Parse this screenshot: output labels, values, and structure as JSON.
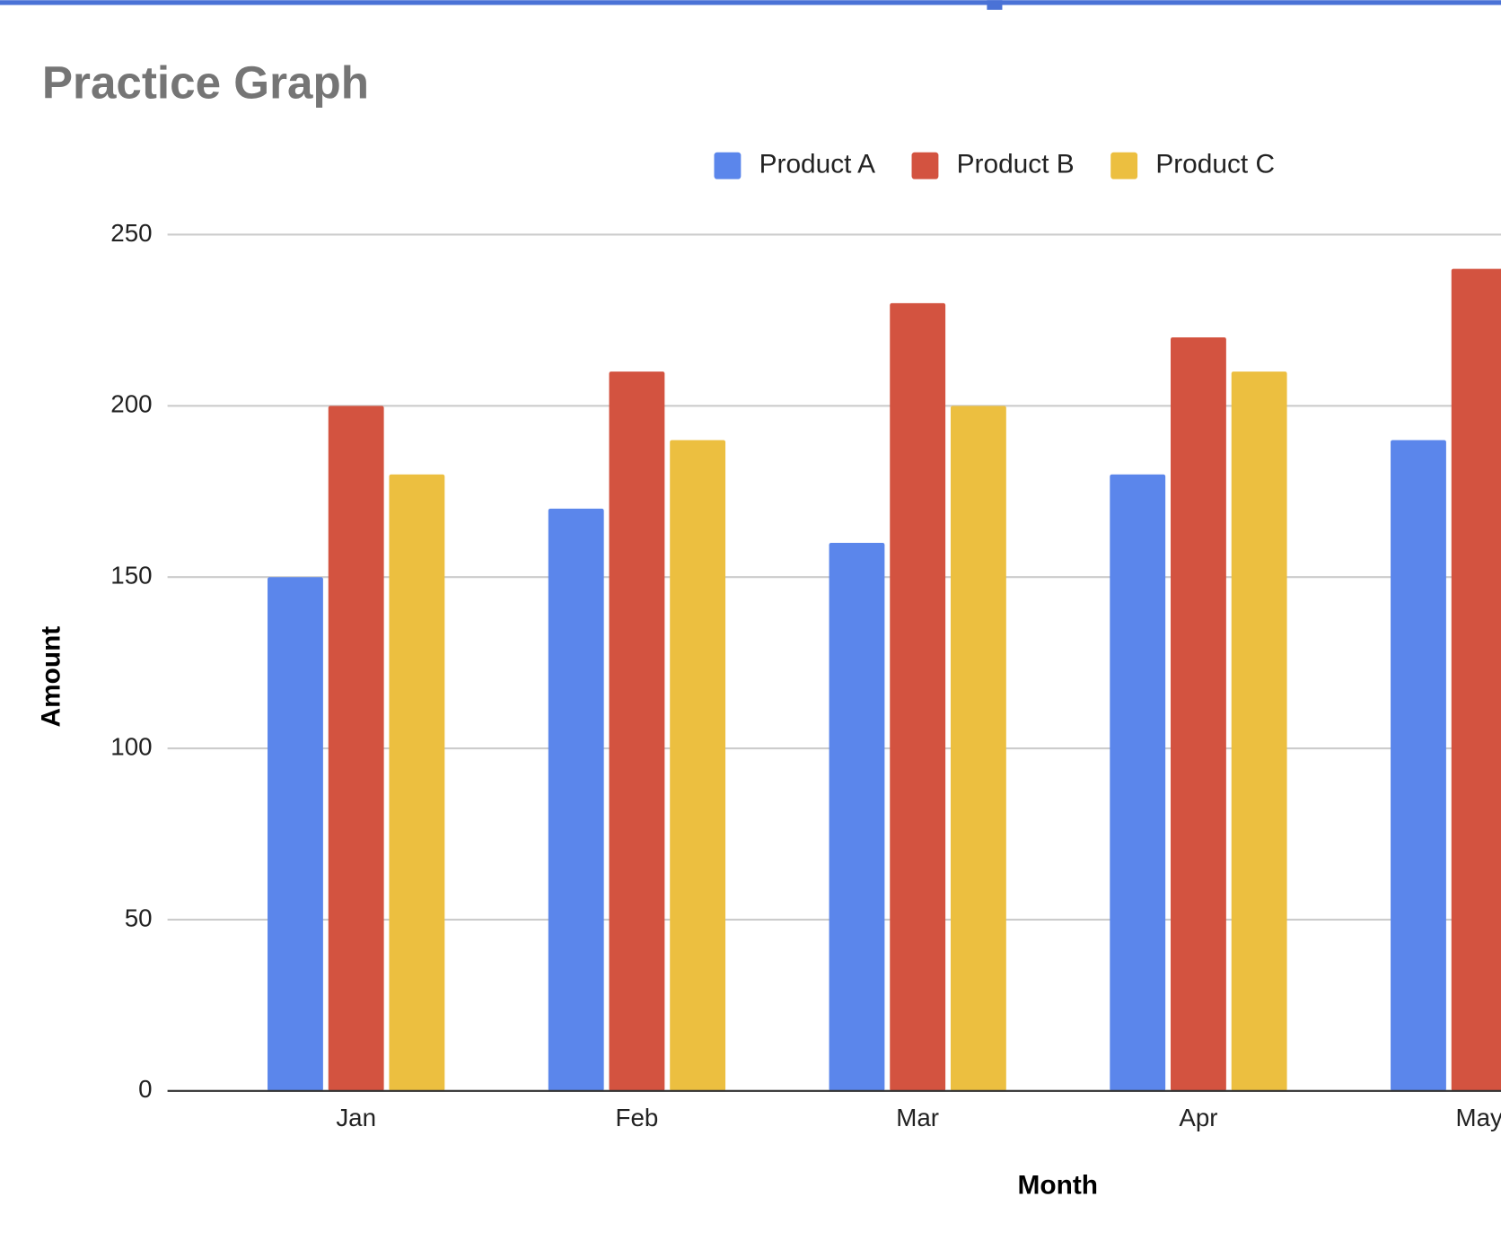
{
  "chart_data": {
    "type": "bar",
    "title": "Practice Graph",
    "x_label": "Month",
    "y_label": "Amount",
    "categories": [
      "Jan",
      "Feb",
      "Mar",
      "Apr",
      "May"
    ],
    "series": [
      {
        "name": "Product A",
        "color": "#5b86eb",
        "values": [
          150,
          170,
          160,
          180,
          190
        ]
      },
      {
        "name": "Product B",
        "color": "#d35340",
        "values": [
          200,
          210,
          230,
          220,
          240
        ]
      },
      {
        "name": "Product C",
        "color": "#ecbf40",
        "values": [
          180,
          190,
          200,
          210,
          null
        ]
      }
    ],
    "ylim": [
      0,
      250
    ],
    "yticks": [
      0,
      50,
      100,
      150,
      200,
      250
    ],
    "grid": true,
    "legend": "top"
  }
}
